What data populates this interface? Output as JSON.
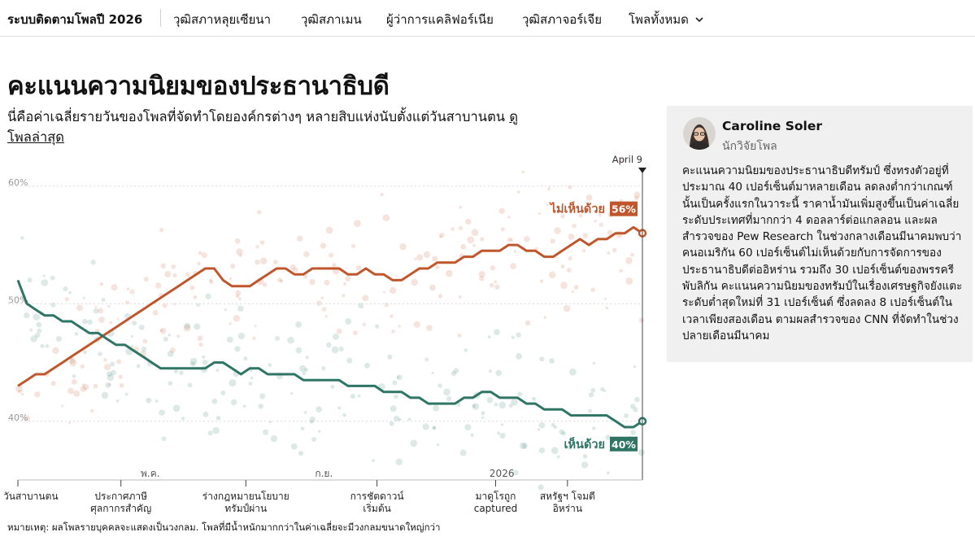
{
  "nav": {
    "brand": "ระบบติดตามโพลปี 2026",
    "items": [
      "วุฒิสภาหลุยเซียนา",
      "วุฒิสภาเมน",
      "ผู้ว่าการแคลิฟอร์เนีย",
      "วุฒิสภาจอร์เจีย",
      "โพลทั้งหมด"
    ],
    "chevron_icon": "chevron-down-icon"
  },
  "headline": "คะแนนความนิยมของประธานาธิบดี",
  "dek": {
    "text": "นี่คือค่าเฉลี่ยรายวันของโพลที่จัดทำโดยองค์กรต่างๆ หลายสิบแห่งนับตั้งแต่วันสาบานตน",
    "link": "ดูโพลล่าสุด"
  },
  "note": "หมายเหตุ: ผลโพลรายบุคคลจะแสดงเป็นวงกลม. โพลที่มีน้ำหนักมากกว่าในค่าเฉลี่ยจะมีวงกลมขนาดใหญ่กว่า",
  "sidebar": {
    "author_name": "Caroline Soler",
    "author_role": "นักวิจัยโพล",
    "body": "คะแนนความนิยมของประธานาธิบดีทรัมป์ ซึ่งทรงตัวอยู่ที่ประมาณ 40 เปอร์เซ็นต์มาหลายเดือน ลดลงต่ำกว่าเกณฑ์นั้นเป็นครั้งแรกในวาระนี้ ราคาน้ำมันเพิ่มสูงขึ้นเป็นค่าเฉลี่ยระดับประเทศที่มากกว่า 4 ดอลลาร์ต่อแกลลอน และผลสำรวจของ Pew Research ในช่วงกลางเดือนมีนาคมพบว่าคนอเมริกัน 60 เปอร์เซ็นต์ไม่เห็นด้วยกับการจัดการของประธานาธิบดีต่ออิหร่าน รวมถึง 30 เปอร์เซ็นต์ของพรรครีพับลิกัน คะแนนความนิยมของทรัมป์ในเรื่องเศรษฐกิจยังแตะระดับต่ำสุดใหม่ที่ 31 เปอร์เซ็นต์ ซึ่งลดลง 8 เปอร์เซ็นต์ในเวลาเพียงสองเดือน ตามผลสำรวจของ CNN ที่จัดทำในช่วงปลายเดือนมีนาคม"
  },
  "chart_data": {
    "type": "line",
    "x_start": "วันสาบานตน",
    "x_end": "April 9",
    "x_ticks": [
      "พ.ค.",
      "ก.ย.",
      "2026"
    ],
    "y_ticks": [
      "60%",
      "50%",
      "40%"
    ],
    "ylim": [
      35,
      62
    ],
    "grid": true,
    "series": [
      {
        "name": "ไม่เห็นด้วย",
        "color": "#c0562b",
        "end_label": "56%",
        "values": [
          43,
          43.5,
          44,
          44,
          44.5,
          45,
          45.5,
          46,
          46.5,
          47,
          47.5,
          48,
          48.5,
          49,
          49.5,
          50,
          50.5,
          51,
          51.5,
          52,
          52.5,
          53,
          53,
          52,
          51.5,
          51.5,
          51.5,
          52,
          52.5,
          53,
          53,
          52.5,
          52.5,
          53,
          53,
          53,
          53,
          52.5,
          52.5,
          53,
          52.5,
          52.5,
          52,
          52,
          52.5,
          53,
          53,
          53.5,
          53.5,
          53.5,
          54,
          54,
          54.5,
          54.5,
          54.5,
          55,
          55,
          54.5,
          54.5,
          54,
          54,
          54.5,
          55,
          55.5,
          55,
          55.5,
          55.5,
          56,
          56,
          56.5,
          56
        ]
      },
      {
        "name": "เห็นด้วย",
        "color": "#2e7565",
        "end_label": "40%",
        "values": [
          52,
          50,
          49.5,
          49,
          49,
          48.5,
          48.5,
          48,
          47.5,
          47.5,
          47,
          46.5,
          46.5,
          46,
          45.5,
          45,
          44.5,
          44.5,
          44.5,
          44.5,
          44.5,
          44.5,
          45,
          45,
          44.5,
          44,
          44.5,
          44.5,
          44,
          44,
          44,
          44,
          43.5,
          43.5,
          43.5,
          43.5,
          43.5,
          43,
          43,
          43,
          43,
          42.5,
          42.5,
          42.5,
          42,
          42,
          41.5,
          41.5,
          41.5,
          41.5,
          42,
          42,
          42.5,
          42.5,
          42,
          42,
          42,
          41.5,
          41.5,
          41,
          41,
          41,
          40.5,
          40.5,
          40.5,
          40.5,
          40.5,
          40,
          39.5,
          39.5,
          40
        ]
      }
    ],
    "events": [
      {
        "label": "วันสาบานตน",
        "x": 0
      },
      {
        "label": "ประกาศภาษีศุลกากรสำคัญ",
        "x": 0.165
      },
      {
        "label": "ร่างกฎหมายนโยบายทรัมป์ผ่าน",
        "x": 0.365
      },
      {
        "label": "การชัตดาวน์เริ่มต้น",
        "x": 0.575
      },
      {
        "label": "มาดูโรถูก captured",
        "x": 0.765
      },
      {
        "label": "สหรัฐฯ โจมตีอิหร่าน",
        "x": 0.88
      }
    ]
  }
}
